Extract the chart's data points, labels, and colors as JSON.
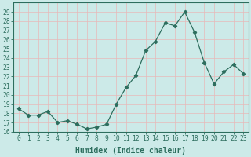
{
  "x": [
    0,
    1,
    2,
    3,
    4,
    5,
    6,
    7,
    8,
    9,
    10,
    11,
    12,
    13,
    14,
    15,
    16,
    17,
    18,
    19,
    20,
    21,
    22,
    23
  ],
  "y": [
    18.5,
    17.8,
    17.8,
    18.2,
    17.0,
    17.2,
    16.8,
    16.3,
    16.5,
    16.8,
    19.0,
    20.8,
    22.1,
    24.8,
    25.8,
    27.8,
    27.5,
    29.0,
    26.8,
    23.5,
    21.2,
    22.5,
    23.3,
    22.3
  ],
  "line_color": "#2d6e5e",
  "marker": "D",
  "marker_size": 2.2,
  "bg_color": "#cceae8",
  "grid_color": "#e8b8b8",
  "xlabel": "Humidex (Indice chaleur)",
  "ylim": [
    16,
    30
  ],
  "xlim": [
    -0.5,
    23.5
  ],
  "yticks": [
    16,
    17,
    18,
    19,
    20,
    21,
    22,
    23,
    24,
    25,
    26,
    27,
    28,
    29
  ],
  "xticks": [
    0,
    1,
    2,
    3,
    4,
    5,
    6,
    7,
    8,
    9,
    10,
    11,
    12,
    13,
    14,
    15,
    16,
    17,
    18,
    19,
    20,
    21,
    22,
    23
  ],
  "tick_color": "#2d6e5e",
  "label_fontsize": 7.0,
  "tick_fontsize": 5.8,
  "linewidth": 0.9
}
